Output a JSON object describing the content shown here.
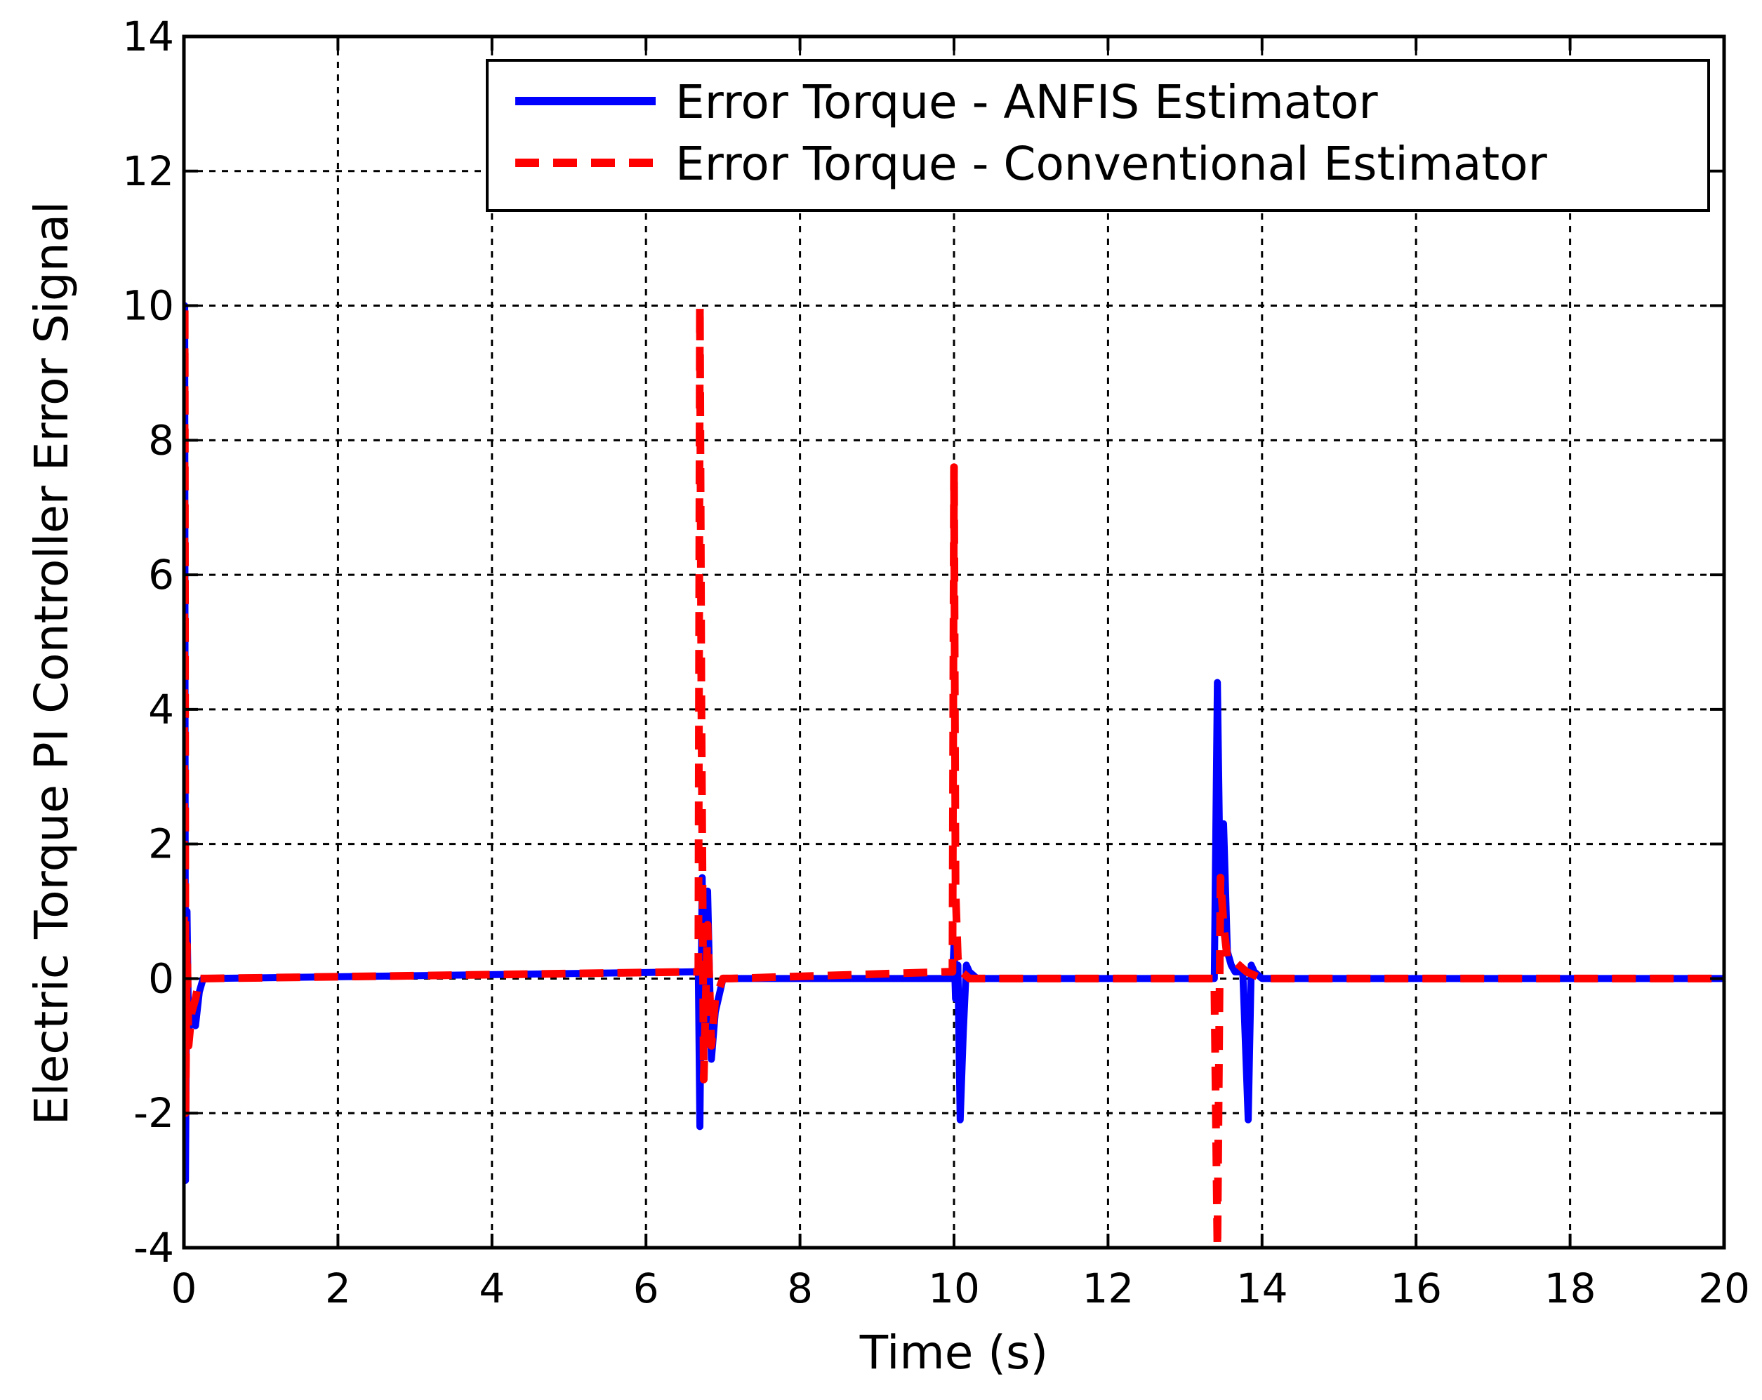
{
  "chart_data": {
    "type": "line",
    "title": "",
    "xlabel": "Time (s)",
    "ylabel": "Electric Torque PI Controller Error Signal",
    "xlim": [
      0,
      20
    ],
    "ylim": [
      -4,
      14
    ],
    "xticks": [
      0,
      2,
      4,
      6,
      8,
      10,
      12,
      14,
      16,
      18,
      20
    ],
    "yticks": [
      -4,
      -2,
      0,
      2,
      4,
      6,
      8,
      10,
      12,
      14
    ],
    "xtick_labels": [
      "0",
      "2",
      "4",
      "6",
      "8",
      "10",
      "12",
      "14",
      "16",
      "18",
      "20"
    ],
    "ytick_labels": [
      "-4",
      "-2",
      "0",
      "2",
      "4",
      "6",
      "8",
      "10",
      "12",
      "14"
    ],
    "grid": true,
    "legend_position": "top-right",
    "series": [
      {
        "name": "Error Torque - ANFIS Estimator",
        "color": "#0000ff",
        "style": "solid",
        "x": [
          0,
          0.01,
          0.02,
          0.04,
          0.06,
          0.1,
          0.15,
          0.2,
          0.25,
          0.3,
          6.6,
          6.68,
          6.7,
          6.73,
          6.76,
          6.8,
          6.85,
          6.9,
          7.0,
          7.1,
          9.9,
          9.98,
          10.0,
          10.02,
          10.05,
          10.08,
          10.12,
          10.16,
          10.2,
          10.3,
          13.3,
          13.38,
          13.42,
          13.46,
          13.5,
          13.55,
          13.6,
          13.65,
          13.75,
          13.82,
          13.86,
          13.9,
          14.0,
          20
        ],
        "y": [
          0,
          10.0,
          -3.0,
          1.0,
          -0.8,
          -0.5,
          -0.7,
          -0.2,
          0,
          0,
          0.1,
          0.1,
          -2.2,
          1.5,
          -1.0,
          1.3,
          -1.2,
          -0.5,
          0,
          0,
          0,
          0,
          0.5,
          -0.3,
          0.2,
          -2.1,
          -0.8,
          0.2,
          0.1,
          0,
          0,
          0,
          4.4,
          1.0,
          2.3,
          0.4,
          0.2,
          0.1,
          0.1,
          -2.1,
          0.2,
          0.1,
          0,
          0
        ]
      },
      {
        "name": "Error Torque - Conventional Estimator",
        "color": "#ff0000",
        "style": "dashed",
        "x": [
          0,
          0.01,
          0.02,
          0.04,
          0.06,
          0.1,
          0.15,
          0.2,
          0.25,
          0.3,
          6.6,
          6.68,
          6.7,
          6.72,
          6.75,
          6.8,
          6.85,
          6.9,
          7.0,
          7.1,
          9.9,
          9.98,
          10.0,
          10.02,
          10.05,
          10.1,
          10.2,
          10.3,
          13.3,
          13.38,
          13.42,
          13.46,
          13.5,
          13.55,
          13.6,
          13.7,
          13.8,
          14.0,
          20
        ],
        "y": [
          0,
          10.0,
          -2.0,
          0.5,
          -1.0,
          -0.5,
          -0.3,
          0,
          0,
          0,
          0.1,
          0.1,
          10.0,
          4.0,
          -1.5,
          0.8,
          -1.0,
          -0.3,
          0,
          0,
          0.1,
          0.1,
          7.6,
          1.3,
          0.3,
          0.1,
          0,
          0,
          0,
          0,
          -4.0,
          1.5,
          0.8,
          0.3,
          0.3,
          0.2,
          0.1,
          0,
          0
        ]
      }
    ]
  }
}
